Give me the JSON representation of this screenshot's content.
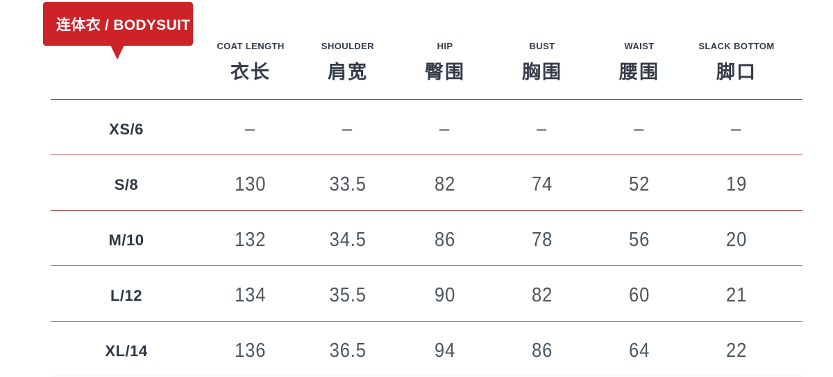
{
  "banner": {
    "label": "连体衣 / BODYSUIT",
    "background_color": "#cc2329",
    "text_color": "#ffffff"
  },
  "table": {
    "divider_color": "#a84343",
    "header_text_color": "#333b46",
    "value_text_color": "#4d555e",
    "columns": [
      {
        "en": "COAT LENGTH",
        "zh": "衣长"
      },
      {
        "en": "SHOULDER",
        "zh": "肩宽"
      },
      {
        "en": "HIP",
        "zh": "臀围"
      },
      {
        "en": "BUST",
        "zh": "胸围"
      },
      {
        "en": "WAIST",
        "zh": "腰围"
      },
      {
        "en": "SLACK BOTTOM",
        "zh": "脚口"
      }
    ],
    "rows": [
      {
        "size": "XS/6",
        "values": [
          "–",
          "–",
          "–",
          "–",
          "–",
          "–"
        ]
      },
      {
        "size": "S/8",
        "values": [
          "130",
          "33.5",
          "82",
          "74",
          "52",
          "19"
        ]
      },
      {
        "size": "M/10",
        "values": [
          "132",
          "34.5",
          "86",
          "78",
          "56",
          "20"
        ]
      },
      {
        "size": "L/12",
        "values": [
          "134",
          "35.5",
          "90",
          "82",
          "60",
          "21"
        ]
      },
      {
        "size": "XL/14",
        "values": [
          "136",
          "36.5",
          "94",
          "86",
          "64",
          "22"
        ]
      }
    ]
  }
}
